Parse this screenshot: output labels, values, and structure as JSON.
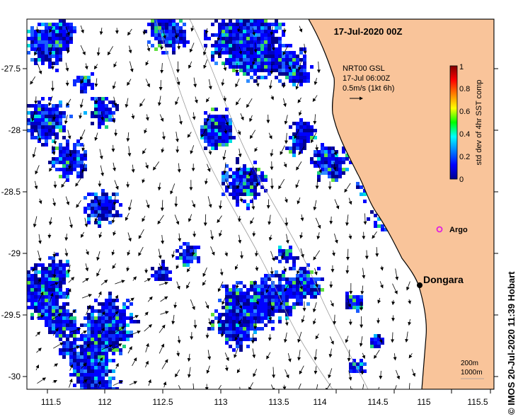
{
  "map": {
    "title": "17-Jul-2020 00Z",
    "credit": "© IMOS 20-Jul-2020 11:39 Hobart",
    "colors": {
      "land": "#f9c49a",
      "coast": "#000000",
      "water": "#ffffff",
      "bathy": "#9a9a9a",
      "argo": "#e020e0"
    },
    "lon_ticks": [
      "111.5",
      "112",
      "112.5",
      "113",
      "113.5",
      "114",
      "114.5",
      "115",
      "115.5"
    ],
    "lat_ticks": [
      "-27.5",
      "-28",
      "-28.5",
      "-29",
      "-29.5",
      "-30"
    ],
    "lon_range": [
      111.33,
      115.6
    ],
    "lat_range": [
      -30.1,
      -27.13
    ]
  },
  "current_info": {
    "line1": "NRT00 GSL",
    "line2": "17-Jul 06:00Z",
    "line3": "0.5m/s (1kt 6h)"
  },
  "colorbar": {
    "label": "std dev of 4hr SST comp",
    "ticks": [
      "1",
      "0.8",
      "0.6",
      "0.4",
      "0.2",
      "0"
    ],
    "range": [
      0,
      1
    ]
  },
  "markers": {
    "dongara_label": "Dongara",
    "dongara_lon": 114.92,
    "dongara_lat": -29.26,
    "argo_label": "Argo",
    "argo_lon": 115.1,
    "argo_lat": -28.9
  },
  "bathy_legend": {
    "line1": "200m",
    "line2": "1000m"
  }
}
